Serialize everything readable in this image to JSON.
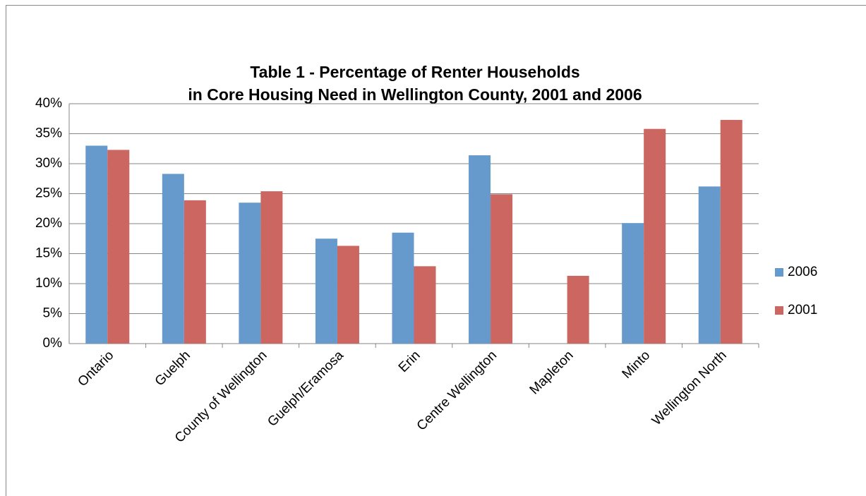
{
  "chart_data": {
    "type": "bar",
    "title": [
      "Table 1 - Percentage of Renter Households",
      "in Core Housing Need in Wellington County, 2001 and 2006"
    ],
    "categories": [
      "Ontario",
      "Guelph",
      "County of Wellington",
      "Guelph/Eramosa",
      "Erin",
      "Centre Wellington",
      "Mapleton",
      "Minto",
      "Wellington North"
    ],
    "series": [
      {
        "name": "2006",
        "color": "#6699cc",
        "values": [
          33,
          28.3,
          23.5,
          17.5,
          18.5,
          31.4,
          null,
          20.1,
          26.2
        ]
      },
      {
        "name": "2001",
        "color": "#cc6661",
        "values": [
          32.3,
          23.9,
          25.4,
          16.3,
          12.9,
          24.9,
          11.3,
          35.8,
          37.3
        ]
      }
    ],
    "ylim": [
      0,
      40
    ],
    "yticks": [
      {
        "value": 0,
        "label": "0%"
      },
      {
        "value": 5,
        "label": "5%"
      },
      {
        "value": 10,
        "label": "10%"
      },
      {
        "value": 15,
        "label": "15%"
      },
      {
        "value": 20,
        "label": "20%"
      },
      {
        "value": 25,
        "label": "25%"
      },
      {
        "value": 30,
        "label": "30%"
      },
      {
        "value": 35,
        "label": "35%"
      },
      {
        "value": 40,
        "label": "40%"
      }
    ],
    "grid": true,
    "legend": "right"
  }
}
